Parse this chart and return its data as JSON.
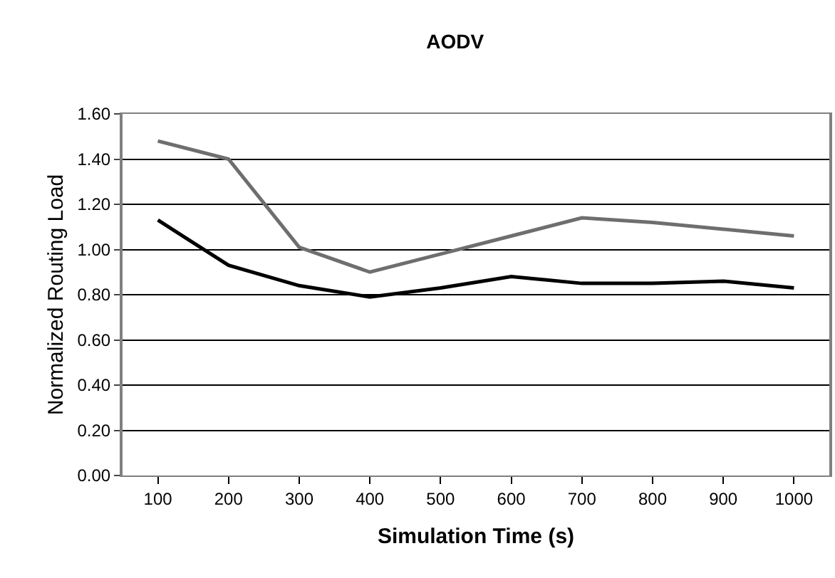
{
  "chart_data": {
    "type": "line",
    "title": "AODV",
    "xlabel": "Simulation Time (s)",
    "ylabel": "Normalized Routing Load",
    "categories": [
      "100",
      "200",
      "300",
      "400",
      "500",
      "600",
      "700",
      "800",
      "900",
      "1000"
    ],
    "series": [
      {
        "color": "#6e6e6e",
        "values": [
          1.48,
          1.4,
          1.01,
          0.9,
          0.98,
          1.06,
          1.14,
          1.12,
          1.09,
          1.06
        ]
      },
      {
        "color": "#000000",
        "values": [
          1.13,
          0.93,
          0.84,
          0.79,
          0.83,
          0.88,
          0.85,
          0.85,
          0.86,
          0.83
        ]
      }
    ],
    "ylim": [
      0,
      1.6
    ],
    "yticks": [
      {
        "value": 0,
        "label": "0.00"
      },
      {
        "value": 0.2,
        "label": "0.20"
      },
      {
        "value": 0.4,
        "label": "0.40"
      },
      {
        "value": 0.6,
        "label": "0.60"
      },
      {
        "value": 0.8,
        "label": "0.80"
      },
      {
        "value": 1,
        "label": "1.00"
      },
      {
        "value": 1.2,
        "label": "1.20"
      },
      {
        "value": 1.4,
        "label": "1.40"
      },
      {
        "value": 1.6,
        "label": "1.60"
      }
    ],
    "grid": "y",
    "marker": "none",
    "line_style": "solid"
  }
}
